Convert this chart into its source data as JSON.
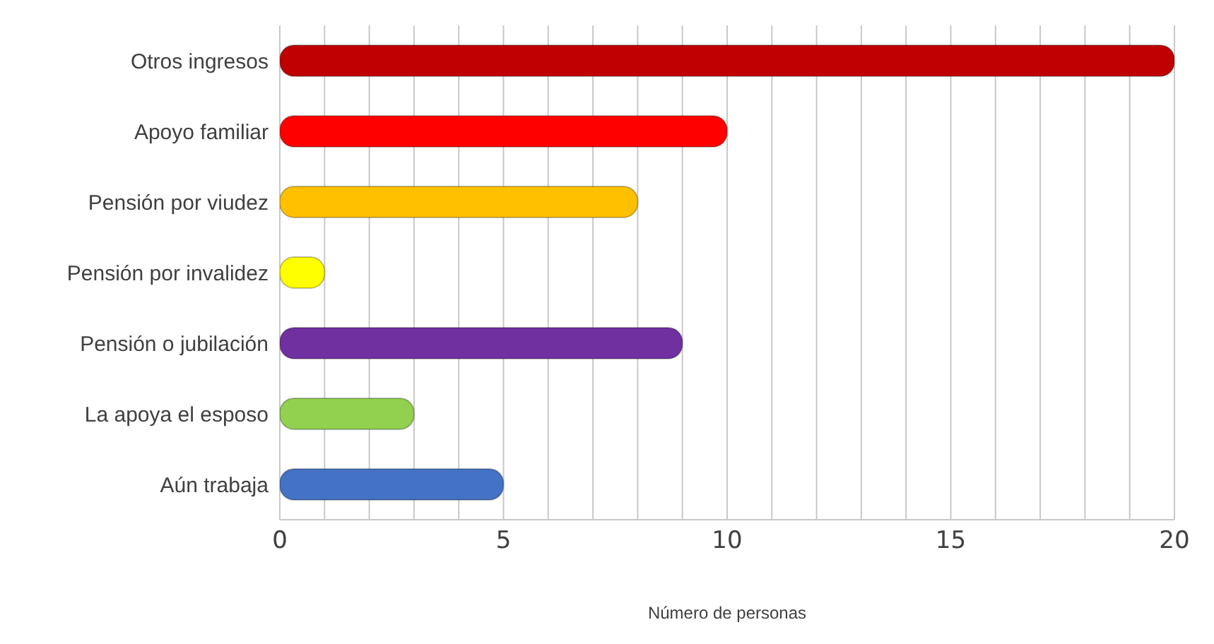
{
  "chart_data": {
    "type": "bar",
    "orientation": "horizontal",
    "xlabel": "Número de personas",
    "categories": [
      "Otros ingresos",
      "Apoyo familiar",
      "Pensión por viudez",
      "Pensión por invalidez",
      "Pensión o jubilación",
      "La apoya el esposo",
      "Aún trabaja"
    ],
    "values": [
      20,
      10,
      8,
      1,
      9,
      3,
      5
    ],
    "colors": [
      "#c00000",
      "#ff0000",
      "#ffc000",
      "#ffff00",
      "#7030a0",
      "#92d050",
      "#4472c4"
    ],
    "xlim": [
      0,
      20
    ],
    "xticks": [
      0,
      {
        "value": 1,
        "label": null
      },
      {
        "value": 2,
        "label": null
      },
      {
        "value": 3,
        "label": null
      },
      {
        "value": 4,
        "label": null
      },
      5,
      {
        "value": 6,
        "label": null
      },
      {
        "value": 7,
        "label": null
      },
      {
        "value": 8,
        "label": null
      },
      {
        "value": 9,
        "label": null
      },
      10,
      {
        "value": 11,
        "label": null
      },
      {
        "value": 12,
        "label": null
      },
      {
        "value": 13,
        "label": null
      },
      {
        "value": 14,
        "label": null
      },
      15,
      {
        "value": 16,
        "label": null
      },
      {
        "value": 17,
        "label": null
      },
      {
        "value": 18,
        "label": null
      },
      {
        "value": 19,
        "label": null
      },
      20
    ],
    "grid": "x",
    "legend": false
  }
}
